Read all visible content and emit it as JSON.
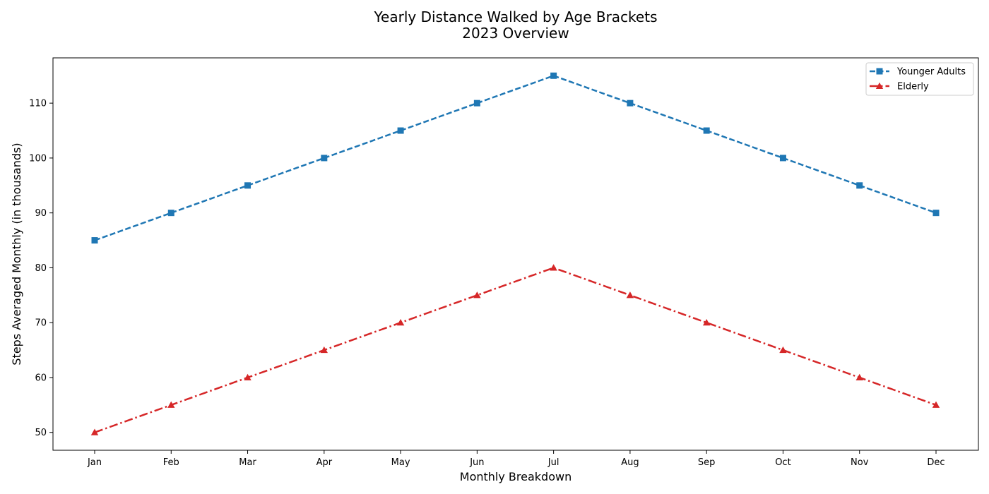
{
  "chart_data": {
    "type": "line",
    "title": "Yearly Distance Walked by Age Brackets",
    "subtitle": "2023 Overview",
    "xlabel": "Monthly Breakdown",
    "ylabel": "Steps Averaged Monthly (in thousands)",
    "categories": [
      "Jan",
      "Feb",
      "Mar",
      "Apr",
      "May",
      "Jun",
      "Jul",
      "Aug",
      "Sep",
      "Oct",
      "Nov",
      "Dec"
    ],
    "ylim": [
      46.75,
      118.25
    ],
    "yticks": [
      50,
      60,
      70,
      80,
      90,
      100,
      110
    ],
    "grid": false,
    "legend_position": "top-right",
    "series": [
      {
        "name": "Younger Adults",
        "values": [
          85,
          90,
          95,
          100,
          105,
          110,
          115,
          110,
          105,
          100,
          95,
          90
        ],
        "color": "#1f77b4",
        "marker": "square",
        "line_style": "dashed"
      },
      {
        "name": "Elderly",
        "values": [
          50,
          55,
          60,
          65,
          70,
          75,
          80,
          75,
          70,
          65,
          60,
          55
        ],
        "color": "#d62728",
        "marker": "triangle",
        "line_style": "dash-dot"
      }
    ]
  }
}
